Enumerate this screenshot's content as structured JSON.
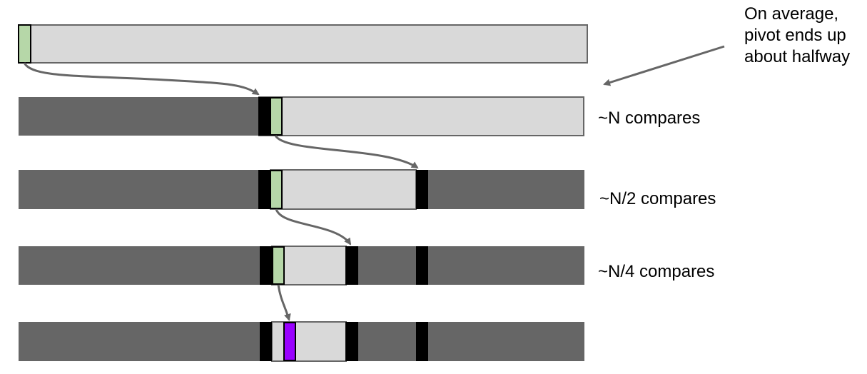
{
  "annotation": {
    "lines": [
      "On average,",
      "pivot ends up",
      "about halfway"
    ]
  },
  "rows": [
    {
      "id": "row-1",
      "compare_label": ""
    },
    {
      "id": "row-2",
      "compare_label": "~N compares"
    },
    {
      "id": "row-3",
      "compare_label": "~N/2 compares"
    },
    {
      "id": "row-4",
      "compare_label": "~N/4 compares"
    },
    {
      "id": "row-5",
      "compare_label": ""
    }
  ],
  "colors": {
    "done": "#666666",
    "active": "#d9d9d9",
    "placed": "#000000",
    "pivot": "#b6d7a8",
    "final_pivot": "#9900ff",
    "outline": "#666666",
    "arrow": "#666666"
  }
}
